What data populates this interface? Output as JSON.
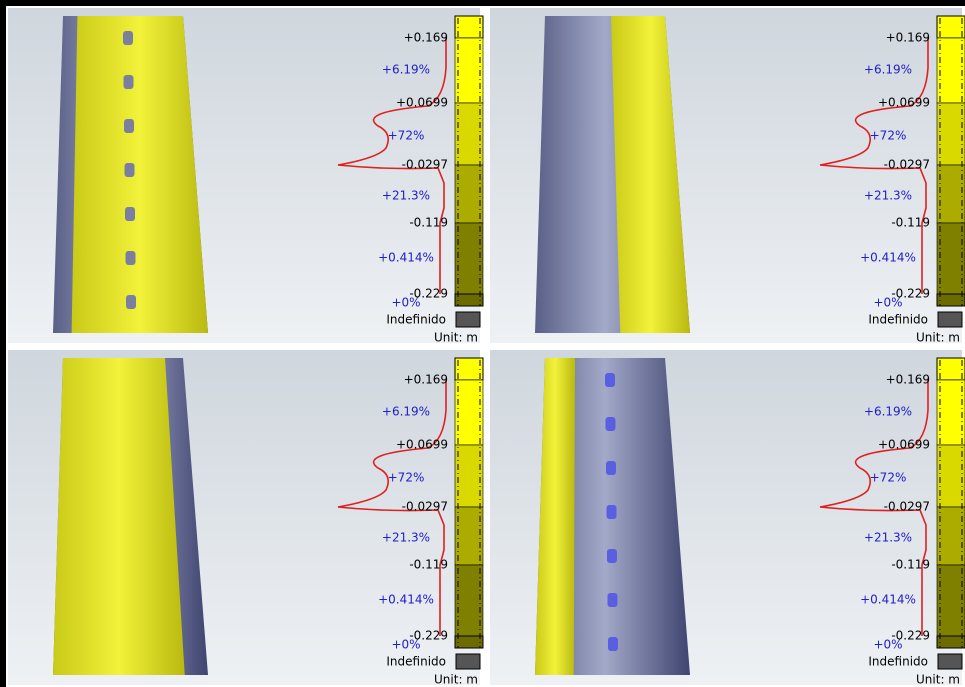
{
  "panels": [
    {
      "scale_labels": [
        "+0.169",
        "+0.0699",
        "-0.0297",
        "-0.119",
        "-0.229"
      ],
      "percent_labels": [
        "+6.19%",
        "+72%",
        "+21.3%",
        "+0.414%",
        "+0%"
      ],
      "undefined_label": "Indefinido",
      "unit_label": "Unit: m"
    },
    {
      "scale_labels": [
        "+0.169",
        "+0.0699",
        "-0.0297",
        "-0.119",
        "-0.229"
      ],
      "percent_labels": [
        "+6.19%",
        "+72%",
        "+21.3%",
        "+0.414%",
        "+0%"
      ],
      "undefined_label": "Indefinido",
      "unit_label": "Unit: m"
    },
    {
      "scale_labels": [
        "+0.169",
        "+0.0699",
        "-0.0297",
        "-0.119",
        "-0.229"
      ],
      "percent_labels": [
        "+6.19%",
        "+72%",
        "+21.3%",
        "+0.414%",
        "+0%"
      ],
      "undefined_label": "Indefinido",
      "unit_label": "Unit: m"
    },
    {
      "scale_labels": [
        "+0.169",
        "+0.0699",
        "-0.0297",
        "-0.119",
        "-0.229"
      ],
      "percent_labels": [
        "+6.19%",
        "+72%",
        "+21.3%",
        "+0.414%",
        "+0%"
      ],
      "undefined_label": "Indefinido",
      "unit_label": "Unit: m"
    }
  ]
}
